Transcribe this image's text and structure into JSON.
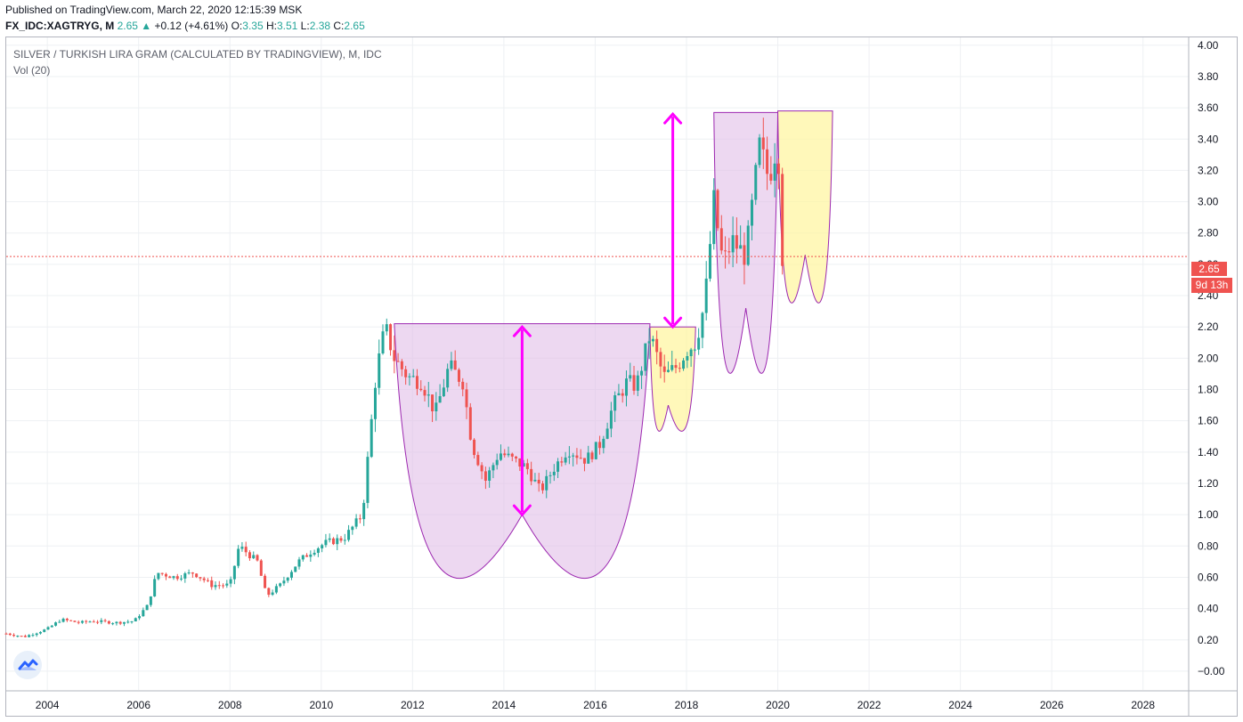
{
  "header": {
    "published": "Published on TradingView.com, March 22, 2020 12:15:39 MSK",
    "symbol": "FX_IDC:XAGTRYG, M",
    "last": "2.65",
    "change_arrow": "▲",
    "change": "+0.12 (+4.61%)",
    "o_label": "O:",
    "o_val": "3.35",
    "h_label": "H:",
    "h_val": "3.51",
    "l_label": "L:",
    "l_val": "2.38",
    "c_label": "C:",
    "c_val": "2.65"
  },
  "legend": {
    "title": "SILVER / TURKISH LIRA GRAM (CALCULATED BY TRADINGVIEW), M, IDC",
    "volume": "Vol (20)"
  },
  "price_label": "2.65",
  "countdown_label": "9d 13h",
  "colors": {
    "up": "#26a69a",
    "down": "#ef5350",
    "cup_fill": "#e1bee7",
    "handle_fill": "#fff59d",
    "arrow": "#ff00ff",
    "price_line": "#ef5350"
  },
  "icons": {
    "logo": "tradingview-logo-icon"
  },
  "chart_data": {
    "type": "candlestick",
    "interval": "monthly",
    "y_ticks": [
      "4.00",
      "3.80",
      "3.60",
      "3.40",
      "3.20",
      "3.00",
      "2.80",
      "2.60",
      "2.40",
      "2.20",
      "2.00",
      "1.80",
      "1.60",
      "1.40",
      "1.20",
      "1.00",
      "0.80",
      "0.60",
      "0.40",
      "0.20",
      "−0.00"
    ],
    "x_ticks": [
      "2004",
      "2006",
      "2008",
      "2010",
      "2012",
      "2014",
      "2016",
      "2018",
      "2020",
      "2022",
      "2024",
      "2026",
      "2028"
    ],
    "ylim": [
      -0.12,
      4.05
    ],
    "xlim": [
      2003.1,
      2029.0
    ],
    "grid": true,
    "current_price": 2.65,
    "close_series": [
      {
        "x": 2003.1,
        "y": 0.24
      },
      {
        "x": 2003.5,
        "y": 0.22
      },
      {
        "x": 2004.0,
        "y": 0.27
      },
      {
        "x": 2004.3,
        "y": 0.33
      },
      {
        "x": 2004.7,
        "y": 0.31
      },
      {
        "x": 2005.0,
        "y": 0.32
      },
      {
        "x": 2005.5,
        "y": 0.31
      },
      {
        "x": 2005.9,
        "y": 0.32
      },
      {
        "x": 2006.2,
        "y": 0.42
      },
      {
        "x": 2006.4,
        "y": 0.63
      },
      {
        "x": 2006.8,
        "y": 0.6
      },
      {
        "x": 2007.2,
        "y": 0.63
      },
      {
        "x": 2007.6,
        "y": 0.55
      },
      {
        "x": 2008.0,
        "y": 0.55
      },
      {
        "x": 2008.2,
        "y": 0.8
      },
      {
        "x": 2008.6,
        "y": 0.7
      },
      {
        "x": 2008.8,
        "y": 0.48
      },
      {
        "x": 2009.1,
        "y": 0.55
      },
      {
        "x": 2009.5,
        "y": 0.7
      },
      {
        "x": 2009.8,
        "y": 0.77
      },
      {
        "x": 2010.1,
        "y": 0.82
      },
      {
        "x": 2010.5,
        "y": 0.85
      },
      {
        "x": 2010.9,
        "y": 1.0
      },
      {
        "x": 2011.0,
        "y": 1.3
      },
      {
        "x": 2011.2,
        "y": 1.9
      },
      {
        "x": 2011.4,
        "y": 2.2
      },
      {
        "x": 2011.6,
        "y": 2.0
      },
      {
        "x": 2011.9,
        "y": 1.88
      },
      {
        "x": 2012.2,
        "y": 1.85
      },
      {
        "x": 2012.5,
        "y": 1.65
      },
      {
        "x": 2012.8,
        "y": 1.95
      },
      {
        "x": 2013.1,
        "y": 1.85
      },
      {
        "x": 2013.3,
        "y": 1.45
      },
      {
        "x": 2013.6,
        "y": 1.22
      },
      {
        "x": 2013.9,
        "y": 1.4
      },
      {
        "x": 2014.2,
        "y": 1.35
      },
      {
        "x": 2014.5,
        "y": 1.3
      },
      {
        "x": 2014.8,
        "y": 1.15
      },
      {
        "x": 2015.1,
        "y": 1.3
      },
      {
        "x": 2015.4,
        "y": 1.42
      },
      {
        "x": 2015.8,
        "y": 1.35
      },
      {
        "x": 2016.1,
        "y": 1.45
      },
      {
        "x": 2016.4,
        "y": 1.7
      },
      {
        "x": 2016.7,
        "y": 1.85
      },
      {
        "x": 2016.9,
        "y": 1.82
      },
      {
        "x": 2017.2,
        "y": 2.15
      },
      {
        "x": 2017.5,
        "y": 1.88
      },
      {
        "x": 2017.8,
        "y": 1.95
      },
      {
        "x": 2018.0,
        "y": 2.05
      },
      {
        "x": 2018.2,
        "y": 2.1
      },
      {
        "x": 2018.4,
        "y": 2.35
      },
      {
        "x": 2018.6,
        "y": 3.0
      },
      {
        "x": 2018.8,
        "y": 2.6
      },
      {
        "x": 2019.0,
        "y": 2.75
      },
      {
        "x": 2019.3,
        "y": 2.65
      },
      {
        "x": 2019.6,
        "y": 3.35
      },
      {
        "x": 2019.8,
        "y": 3.15
      },
      {
        "x": 2020.0,
        "y": 3.4
      },
      {
        "x": 2020.1,
        "y": 2.65
      }
    ],
    "annotations": [
      {
        "kind": "cup",
        "x_range": [
          2011.6,
          2017.2
        ],
        "rim_y": 2.22,
        "bottom_x": 2014.4,
        "bottom_y": 1.0
      },
      {
        "kind": "handle",
        "x_range": [
          2017.2,
          2018.2
        ],
        "rim_y": 2.2,
        "bottom_x": 2017.6,
        "bottom_y": 1.7
      },
      {
        "kind": "cup",
        "x_range": [
          2018.6,
          2020.0
        ],
        "rim_y": 3.57,
        "bottom_x": 2019.3,
        "bottom_y": 2.32
      },
      {
        "kind": "handle",
        "x_range": [
          2020.0,
          2021.2
        ],
        "rim_y": 3.58,
        "bottom_x": 2020.6,
        "bottom_y": 2.66
      },
      {
        "kind": "double-arrow",
        "x": 2014.4,
        "y_range": [
          1.0,
          2.2
        ]
      },
      {
        "kind": "double-arrow",
        "x": 2017.7,
        "y_range": [
          2.2,
          3.56
        ]
      }
    ]
  }
}
